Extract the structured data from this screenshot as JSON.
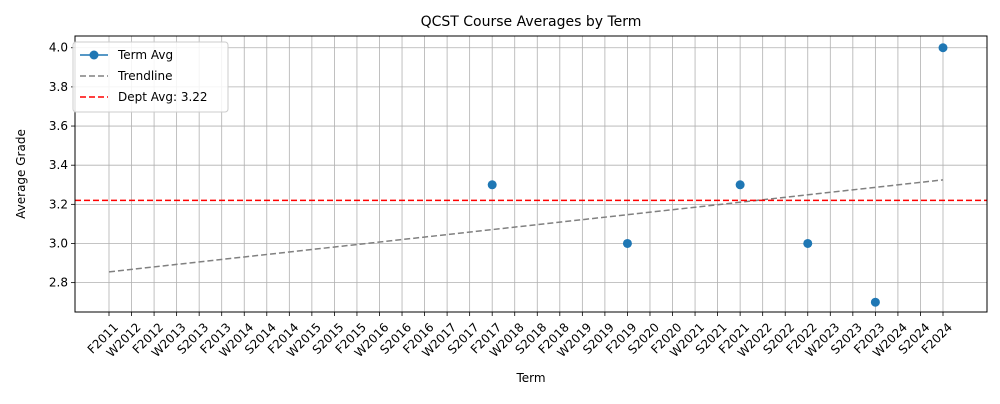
{
  "chart_data": {
    "type": "line",
    "title": "QCST Course Averages by Term",
    "xlabel": "Term",
    "ylabel": "Average Grade",
    "categories": [
      "F2011",
      "W2012",
      "F2012",
      "W2013",
      "S2013",
      "F2013",
      "W2014",
      "S2014",
      "F2014",
      "W2015",
      "S2015",
      "F2015",
      "W2016",
      "S2016",
      "F2016",
      "W2017",
      "S2017",
      "F2017",
      "W2018",
      "S2018",
      "F2018",
      "W2019",
      "S2019",
      "F2019",
      "S2020",
      "F2020",
      "W2021",
      "S2021",
      "F2021",
      "W2022",
      "S2022",
      "F2022",
      "W2023",
      "S2023",
      "F2023",
      "W2024",
      "S2024",
      "F2024"
    ],
    "ylim": [
      2.65,
      4.06
    ],
    "yticks": [
      2.8,
      3.0,
      3.2,
      3.4,
      3.6,
      3.8,
      4.0
    ],
    "series": [
      {
        "name": "Term Avg",
        "color": "#1f77b4",
        "marker": "circle",
        "points": [
          {
            "x": "F2017",
            "y": 3.3
          },
          {
            "x": "F2019",
            "y": 3.0
          },
          {
            "x": "F2021",
            "y": 3.3
          },
          {
            "x": "F2022",
            "y": 3.0
          },
          {
            "x": "F2023",
            "y": 2.7
          },
          {
            "x": "F2024",
            "y": 4.0
          }
        ]
      },
      {
        "name": "Trendline",
        "color": "#808080",
        "style": "dashed",
        "start": {
          "x": "F2011",
          "y": 2.855
        },
        "end": {
          "x": "F2024",
          "y": 3.325
        }
      },
      {
        "name": "Dept Avg: 3.22",
        "color": "#ff0000",
        "style": "dashed",
        "y": 3.22
      }
    ],
    "grid": true,
    "legend_position": "top-left"
  }
}
